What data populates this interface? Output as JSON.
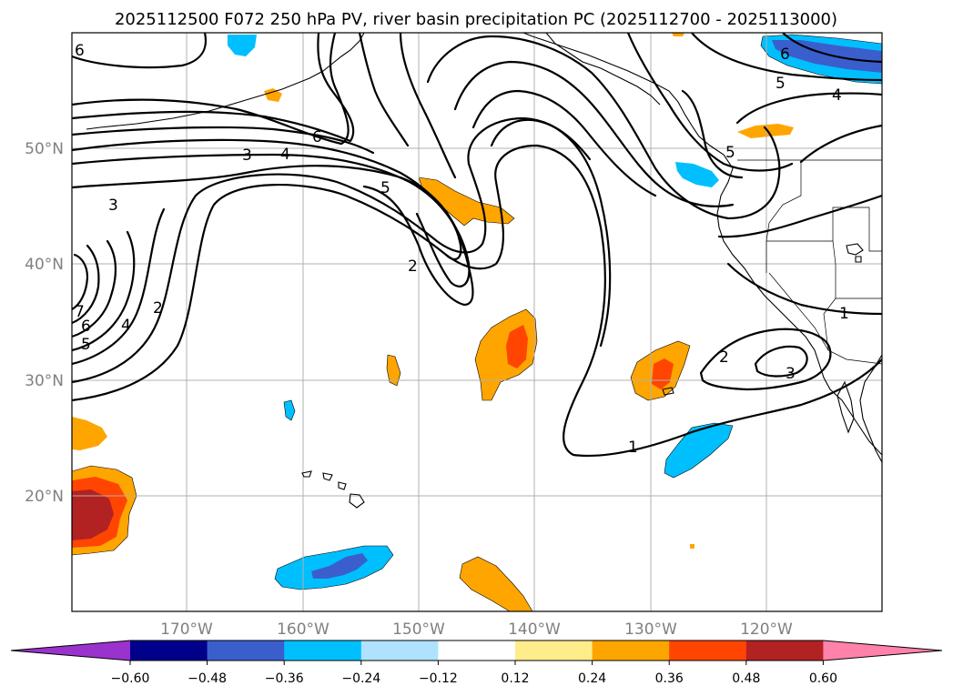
{
  "title": "2025112500 F072 250 hPa PV, river basin precipitation PC (2025112700 - 2025113000)",
  "lat_labels": [
    "50°N",
    "40°N",
    "30°N",
    "20°N"
  ],
  "lon_labels": [
    "170°W",
    "160°W",
    "150°W",
    "140°W",
    "130°W",
    "120°W"
  ],
  "colorbar": {
    "tick_labels": [
      "−0.60",
      "−0.48",
      "−0.36",
      "−0.24",
      "−0.12",
      "0.12",
      "0.24",
      "0.36",
      "0.48",
      "0.60"
    ],
    "colors": [
      "#9a32cd",
      "#00008b",
      "#3a5fcd",
      "#00bfff",
      "#b0e2ff",
      "#ffffff",
      "#ffec8b",
      "#ffa500",
      "#ff4500",
      "#b22222",
      "#ff82ab"
    ]
  },
  "pv_contour_labels": [
    "6",
    "5",
    "4",
    "6",
    "3",
    "4",
    "6",
    "5",
    "3",
    "2",
    "7",
    "6",
    "5",
    "4",
    "2",
    "1",
    "2",
    "3",
    "1",
    "5"
  ],
  "precip_colors": {
    "orange": "#ffa500",
    "red_orange": "#ff4500",
    "dark_red": "#b22222",
    "light_blue": "#00bfff",
    "blue": "#3a5fcd"
  }
}
